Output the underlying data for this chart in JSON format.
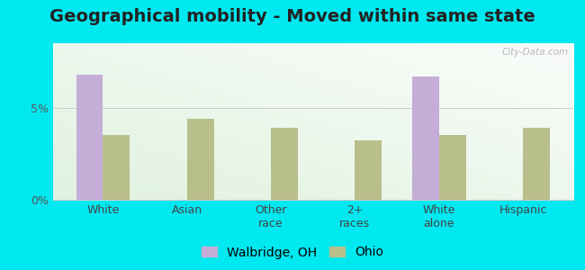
{
  "title": "Geographical mobility - Moved within same state",
  "categories": [
    "White",
    "Asian",
    "Other\nrace",
    "2+\nraces",
    "White\nalone",
    "Hispanic"
  ],
  "walbridge_values": [
    6.8,
    0,
    0,
    0,
    6.7,
    0
  ],
  "ohio_values": [
    3.5,
    4.4,
    3.9,
    3.2,
    3.5,
    3.9
  ],
  "walbridge_color": "#c4aed8",
  "ohio_color": "#b8bf8a",
  "background_color": "#00e8f0",
  "ylim": [
    0,
    8.5
  ],
  "yticks": [
    0,
    5
  ],
  "ytick_labels": [
    "0%",
    "5%"
  ],
  "bar_width": 0.32,
  "legend_walbridge": "Walbridge, OH",
  "legend_ohio": "Ohio",
  "title_fontsize": 14,
  "tick_fontsize": 9,
  "legend_fontsize": 10,
  "grid_color": "#cccccc",
  "watermark": "City-Data.com",
  "plot_bg_color": "#e8f5e2"
}
